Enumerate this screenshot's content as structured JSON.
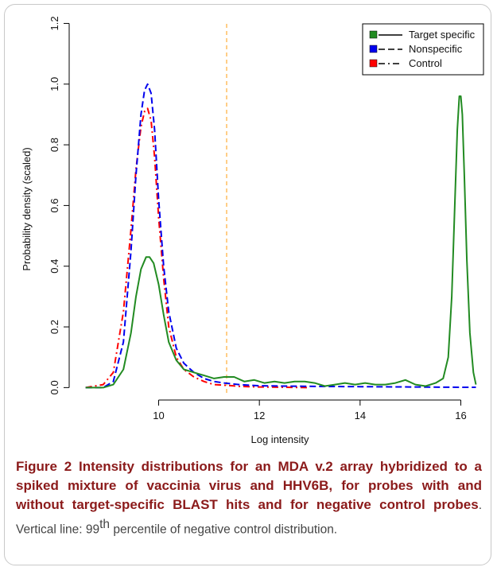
{
  "figure": {
    "caption": {
      "label": "Figure 2",
      "title": " Intensity distributions for an MDA v.2 array hybridized to a spiked mixture of vaccinia virus and HHV6B, for probes with and without target-specific BLAST hits and for negative control probes",
      "note_before_sup": ". Vertical line: 99",
      "note_sup": "th",
      "note_after_sup": " percentile of negative control distribution."
    }
  },
  "chart_data": {
    "type": "line",
    "xlabel": "Log intensity",
    "ylabel": "Probability density (scaled)",
    "xlim": [
      8.35,
      16.45
    ],
    "ylim": [
      -0.02,
      1.23
    ],
    "xticks": [
      10,
      12,
      14,
      16
    ],
    "yticks": [
      0.0,
      0.2,
      0.4,
      0.6,
      0.8,
      1.0,
      1.2
    ],
    "vline": {
      "x": 11.35,
      "color": "#ffb347"
    },
    "legend": {
      "position": "top-right"
    },
    "series": [
      {
        "name": "Target specific",
        "color": "#228b22",
        "dash": "solid",
        "x": [
          8.55,
          8.9,
          9.1,
          9.3,
          9.45,
          9.55,
          9.65,
          9.75,
          9.82,
          9.9,
          10.0,
          10.1,
          10.2,
          10.35,
          10.5,
          10.7,
          10.9,
          11.1,
          11.3,
          11.5,
          11.7,
          11.9,
          12.1,
          12.3,
          12.5,
          12.7,
          12.9,
          13.1,
          13.3,
          13.5,
          13.7,
          13.9,
          14.1,
          14.3,
          14.5,
          14.7,
          14.9,
          15.1,
          15.3,
          15.5,
          15.65,
          15.75,
          15.82,
          15.88,
          15.93,
          15.97,
          16.0,
          16.03,
          16.07,
          16.12,
          16.18,
          16.25,
          16.3
        ],
        "y": [
          0.0,
          0.0,
          0.01,
          0.06,
          0.18,
          0.3,
          0.39,
          0.43,
          0.43,
          0.41,
          0.34,
          0.24,
          0.15,
          0.09,
          0.06,
          0.05,
          0.04,
          0.03,
          0.035,
          0.035,
          0.02,
          0.025,
          0.015,
          0.02,
          0.015,
          0.02,
          0.02,
          0.015,
          0.005,
          0.01,
          0.015,
          0.01,
          0.015,
          0.01,
          0.01,
          0.015,
          0.025,
          0.01,
          0.005,
          0.015,
          0.03,
          0.1,
          0.3,
          0.6,
          0.85,
          0.96,
          0.96,
          0.9,
          0.7,
          0.42,
          0.18,
          0.05,
          0.01
        ]
      },
      {
        "name": "Nonspecific",
        "color": "#0000ee",
        "dash": "dashed",
        "x": [
          8.55,
          8.9,
          9.1,
          9.3,
          9.45,
          9.55,
          9.65,
          9.72,
          9.78,
          9.85,
          9.92,
          10.0,
          10.1,
          10.2,
          10.35,
          10.5,
          10.7,
          10.9,
          11.1,
          11.3,
          11.6,
          12.0,
          12.5,
          13.0,
          14.0,
          15.0,
          16.0,
          16.3
        ],
        "y": [
          0.0,
          0.0,
          0.02,
          0.15,
          0.45,
          0.7,
          0.9,
          0.98,
          1.0,
          0.97,
          0.85,
          0.62,
          0.4,
          0.25,
          0.13,
          0.08,
          0.05,
          0.03,
          0.02,
          0.015,
          0.01,
          0.006,
          0.005,
          0.004,
          0.003,
          0.002,
          0.001,
          0.001
        ]
      },
      {
        "name": "Control",
        "color": "#ff0000",
        "dash": "dashdot",
        "x": [
          8.55,
          8.9,
          9.1,
          9.3,
          9.45,
          9.55,
          9.65,
          9.72,
          9.78,
          9.85,
          9.92,
          10.0,
          10.1,
          10.2,
          10.35,
          10.5,
          10.7,
          10.9,
          11.1,
          11.3,
          11.6,
          12.0,
          12.5,
          13.0
        ],
        "y": [
          0.0,
          0.01,
          0.05,
          0.25,
          0.52,
          0.72,
          0.86,
          0.91,
          0.92,
          0.88,
          0.76,
          0.56,
          0.36,
          0.2,
          0.1,
          0.06,
          0.035,
          0.02,
          0.01,
          0.008,
          0.004,
          0.002,
          0.001,
          0.0
        ]
      }
    ]
  }
}
